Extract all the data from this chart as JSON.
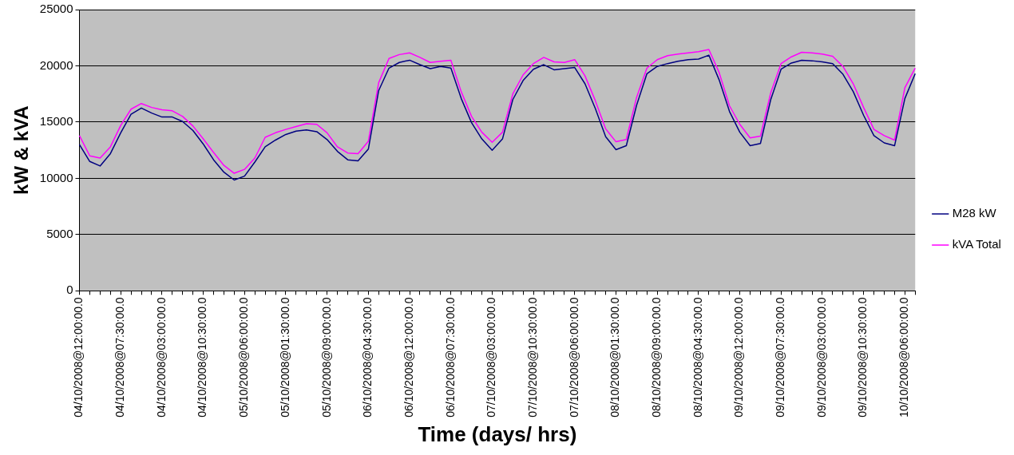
{
  "chart_data": {
    "type": "line",
    "xlabel": "Time (days/ hrs)",
    "ylabel": "kW & kVA",
    "categories": [
      "04/10/2008@12:00:00.0",
      null,
      null,
      null,
      "04/10/2008@07:30:00.0",
      null,
      null,
      null,
      "04/10/2008@03:00:00.0",
      null,
      null,
      null,
      "04/10/2008@10:30:00.0",
      null,
      null,
      null,
      "05/10/2008@06:00:00.0",
      null,
      null,
      null,
      "05/10/2008@01:30:00.0",
      null,
      null,
      null,
      "05/10/2008@09:00:00.0",
      null,
      null,
      null,
      "06/10/2008@04:30:00.0",
      null,
      null,
      null,
      "06/10/2008@12:00:00.0",
      null,
      null,
      null,
      "06/10/2008@07:30:00.0",
      null,
      null,
      null,
      "07/10/2008@03:00:00.0",
      null,
      null,
      null,
      "07/10/2008@10:30:00.0",
      null,
      null,
      null,
      "07/10/2008@06:00:00.0",
      null,
      null,
      null,
      "08/10/2008@01:30:00.0",
      null,
      null,
      null,
      "08/10/2008@09:00:00.0",
      null,
      null,
      null,
      "08/10/2008@04:30:00.0",
      null,
      null,
      null,
      "09/10/2008@12:00:00.0",
      null,
      null,
      null,
      "09/10/2008@07:30:00.0",
      null,
      null,
      null,
      "09/10/2008@03:00:00.0",
      null,
      null,
      null,
      "09/10/2008@10:30:00.0",
      null,
      null,
      null,
      "10/10/2008@06:00:00.0",
      null
    ],
    "series": [
      {
        "name": "M28 kW",
        "color": "#000080",
        "values": [
          13000,
          11500,
          11100,
          12200,
          14050,
          15700,
          16250,
          15800,
          15450,
          15450,
          15050,
          14250,
          13050,
          11650,
          10550,
          9850,
          10200,
          11450,
          12800,
          13400,
          13900,
          14200,
          14300,
          14150,
          13450,
          12400,
          11650,
          11550,
          12600,
          17800,
          19800,
          20300,
          20500,
          20100,
          19750,
          19950,
          19800,
          17100,
          14950,
          13500,
          12500,
          13500,
          17000,
          18700,
          19700,
          20100,
          19650,
          19750,
          19850,
          18400,
          16200,
          13700,
          12550,
          12900,
          16500,
          19300,
          19950,
          20200,
          20400,
          20550,
          20600,
          20950,
          18750,
          15950,
          14100,
          12900,
          13100,
          17000,
          19700,
          20250,
          20500,
          20450,
          20350,
          20200,
          19250,
          17700,
          15600,
          13800,
          13150,
          12900,
          17100,
          19300
        ]
      },
      {
        "name": "kVA Total",
        "color": "#ff00ff",
        "values": [
          13800,
          12000,
          11800,
          12800,
          14700,
          16150,
          16650,
          16300,
          16100,
          16000,
          15500,
          14650,
          13500,
          12300,
          11150,
          10450,
          10800,
          11800,
          13650,
          14050,
          14350,
          14600,
          14850,
          14800,
          14050,
          12800,
          12250,
          12200,
          13300,
          18500,
          20650,
          21000,
          21150,
          20750,
          20300,
          20400,
          20500,
          17700,
          15500,
          14100,
          13200,
          14100,
          17500,
          19200,
          20200,
          20750,
          20350,
          20300,
          20550,
          19100,
          16900,
          14400,
          13250,
          13450,
          17200,
          19800,
          20550,
          20900,
          21050,
          21150,
          21250,
          21450,
          19400,
          16450,
          14800,
          13600,
          13750,
          17600,
          20200,
          20800,
          21200,
          21150,
          21050,
          20850,
          19950,
          18400,
          16300,
          14350,
          13800,
          13400,
          18050,
          19800
        ]
      }
    ],
    "ylim": [
      0,
      25000
    ],
    "yticks": [
      0,
      5000,
      10000,
      15000,
      20000,
      25000
    ],
    "grid": "y",
    "legend": "right",
    "marker": "none",
    "line_style": "solid"
  }
}
